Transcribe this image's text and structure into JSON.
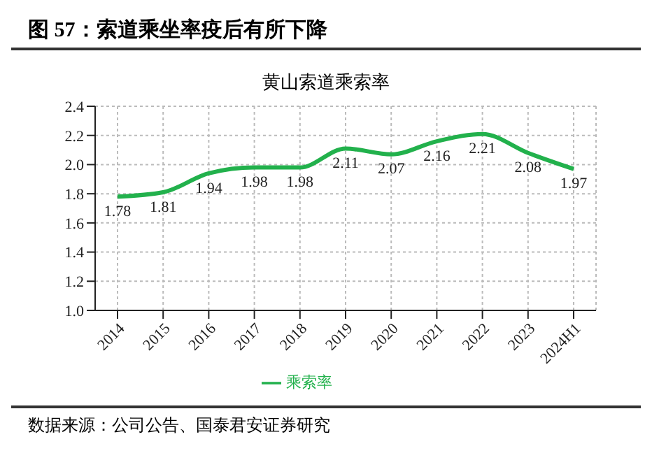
{
  "chart_data": {
    "type": "line",
    "title": "图 57：索道乘坐率疫后有所下降",
    "subtitle": "黄山索道乘索率",
    "categories": [
      "2014",
      "2015",
      "2016",
      "2017",
      "2018",
      "2019",
      "2020",
      "2021",
      "2022",
      "2023",
      "2024H1"
    ],
    "series": [
      {
        "name": "乘索率",
        "color": "#22b14c",
        "values": [
          1.78,
          1.81,
          1.94,
          1.98,
          1.98,
          2.11,
          2.07,
          2.16,
          2.21,
          2.08,
          1.97
        ]
      }
    ],
    "ylim": [
      1.0,
      2.4
    ],
    "yticks": [
      {
        "value": 1.0,
        "label": "1.0"
      },
      {
        "value": 1.2,
        "label": "1.2"
      },
      {
        "value": 1.4,
        "label": "1.4"
      },
      {
        "value": 1.6,
        "label": "1.6"
      },
      {
        "value": 1.8,
        "label": "1.8"
      },
      {
        "value": 2.0,
        "label": "2.0"
      },
      {
        "value": 2.2,
        "label": "2.2"
      },
      {
        "value": 2.4,
        "label": "2.4"
      }
    ],
    "grid": true,
    "legend": "bottom",
    "data_labels": true,
    "marker": "none",
    "line_style": "solid",
    "annotations": [
      "数据来源：公司公告、国泰君安证券研究"
    ]
  }
}
